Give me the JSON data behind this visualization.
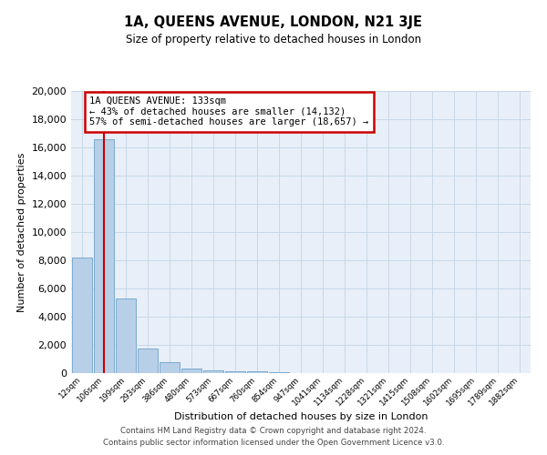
{
  "title": "1A, QUEENS AVENUE, LONDON, N21 3JE",
  "subtitle": "Size of property relative to detached houses in London",
  "xlabel": "Distribution of detached houses by size in London",
  "ylabel": "Number of detached properties",
  "bar_labels": [
    "12sqm",
    "106sqm",
    "199sqm",
    "293sqm",
    "386sqm",
    "480sqm",
    "573sqm",
    "667sqm",
    "760sqm",
    "854sqm",
    "947sqm",
    "1041sqm",
    "1134sqm",
    "1228sqm",
    "1321sqm",
    "1415sqm",
    "1508sqm",
    "1602sqm",
    "1695sqm",
    "1789sqm",
    "1882sqm"
  ],
  "bar_values": [
    8200,
    16600,
    5300,
    1750,
    750,
    300,
    200,
    100,
    100,
    50,
    0,
    0,
    0,
    0,
    0,
    0,
    0,
    0,
    0,
    0,
    0
  ],
  "bar_color": "#b8cfe8",
  "bar_edge_color": "#7aaad0",
  "grid_color": "#c8d8e8",
  "background_color": "#e8eff8",
  "property_line_x": 1,
  "property_line_color": "#cc0000",
  "annotation_title": "1A QUEENS AVENUE: 133sqm",
  "annotation_line1": "← 43% of detached houses are smaller (14,132)",
  "annotation_line2": "57% of semi-detached houses are larger (18,657) →",
  "annotation_box_color": "#ffffff",
  "annotation_box_edge": "#cc0000",
  "ylim": [
    0,
    20000
  ],
  "yticks": [
    0,
    2000,
    4000,
    6000,
    8000,
    10000,
    12000,
    14000,
    16000,
    18000,
    20000
  ],
  "footer1": "Contains HM Land Registry data © Crown copyright and database right 2024.",
  "footer2": "Contains public sector information licensed under the Open Government Licence v3.0."
}
